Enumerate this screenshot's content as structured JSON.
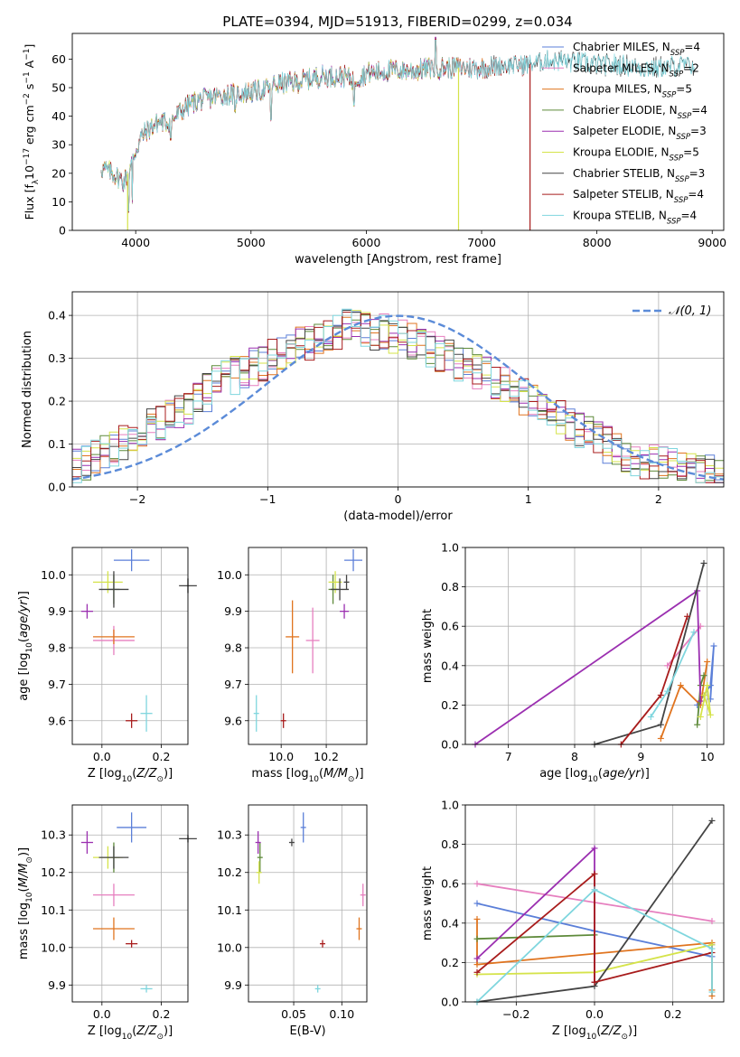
{
  "figure": {
    "title": "PLATE=0394, MJD=51913, FIBERID=0299, z=0.034"
  },
  "colors": {
    "Chabrier MILES": "#5b7fd8",
    "Salpeter MILES": "#e67fbf",
    "Kroupa MILES": "#e0741f",
    "Chabrier ELODIE": "#5e8a3a",
    "Salpeter ELODIE": "#9b2fb0",
    "Kroupa ELODIE": "#d5e34a",
    "Chabrier STELIB": "#444444",
    "Salpeter STELIB": "#a81c1c",
    "Kroupa STELIB": "#7fd6de",
    "gaussian": "#5b8bd8"
  },
  "chart_data": [
    {
      "id": "spectrum",
      "type": "line",
      "xlabel": "wavelength [Angstrom, rest frame]",
      "ylabel": "Flux [f_λ10^-17 erg cm^-2 s^-1 A^-1]",
      "xlim": [
        3450,
        9100
      ],
      "ylim": [
        0,
        69
      ],
      "xticks": [
        4000,
        5000,
        6000,
        7000,
        8000,
        9000
      ],
      "yticks": [
        0,
        10,
        20,
        30,
        40,
        50,
        60
      ],
      "grid": false,
      "legend_position": "right",
      "continuum": [
        [
          3700,
          22
        ],
        [
          3800,
          20
        ],
        [
          3900,
          17
        ],
        [
          3950,
          22
        ],
        [
          4000,
          28
        ],
        [
          4050,
          33
        ],
        [
          4100,
          35
        ],
        [
          4200,
          38
        ],
        [
          4300,
          38
        ],
        [
          4400,
          42
        ],
        [
          4500,
          45
        ],
        [
          4700,
          47
        ],
        [
          4900,
          48
        ],
        [
          5100,
          49
        ],
        [
          5200,
          51
        ],
        [
          5400,
          52
        ],
        [
          5600,
          54
        ],
        [
          5800,
          54
        ],
        [
          5900,
          53
        ],
        [
          6000,
          55
        ],
        [
          6200,
          56
        ],
        [
          6400,
          56
        ],
        [
          6600,
          57
        ],
        [
          6800,
          57
        ],
        [
          7000,
          57
        ],
        [
          7200,
          58
        ],
        [
          7400,
          58
        ],
        [
          7600,
          60
        ],
        [
          7800,
          59
        ],
        [
          8000,
          58
        ],
        [
          8200,
          58
        ],
        [
          8400,
          57
        ],
        [
          8600,
          57
        ],
        [
          8800,
          58
        ]
      ],
      "features": [
        {
          "x": 3935,
          "y": 7
        },
        {
          "x": 3970,
          "y": 10
        },
        {
          "x": 4305,
          "y": 32
        },
        {
          "x": 4862,
          "y": 42
        },
        {
          "x": 5175,
          "y": 39
        },
        {
          "x": 5895,
          "y": 44
        },
        {
          "x": 6563,
          "y": 59
        },
        {
          "x": 6600,
          "y": 67
        }
      ],
      "dropouts": [
        {
          "series": "Kroupa ELODIE",
          "x": 3930
        },
        {
          "series": "Kroupa ELODIE",
          "x": 6800
        },
        {
          "series": "Salpeter STELIB",
          "x": 7420
        }
      ],
      "series": [
        {
          "name": "Chabrier MILES, N_SSP=4",
          "name_main": "Chabrier MILES, N",
          "name_sub": "SSP",
          "name_tail": "=4",
          "color_key": "Chabrier MILES",
          "xmax": 7100
        },
        {
          "name": "Salpeter MILES, N_SSP=2",
          "name_main": "Salpeter MILES, N",
          "name_sub": "SSP",
          "name_tail": "=2",
          "color_key": "Salpeter MILES",
          "xmax": 7100
        },
        {
          "name": "Kroupa MILES, N_SSP=5",
          "name_main": "Kroupa MILES, N",
          "name_sub": "SSP",
          "name_tail": "=5",
          "color_key": "Kroupa MILES",
          "xmax": 7100
        },
        {
          "name": "Chabrier ELODIE, N_SSP=4",
          "name_main": "Chabrier ELODIE, N",
          "name_sub": "SSP",
          "name_tail": "=4",
          "color_key": "Chabrier ELODIE",
          "xmax": 6800
        },
        {
          "name": "Salpeter ELODIE, N_SSP=3",
          "name_main": "Salpeter ELODIE, N",
          "name_sub": "SSP",
          "name_tail": "=3",
          "color_key": "Salpeter ELODIE",
          "xmax": 6800
        },
        {
          "name": "Kroupa ELODIE, N_SSP=5",
          "name_main": "Kroupa ELODIE, N",
          "name_sub": "SSP",
          "name_tail": "=5",
          "color_key": "Kroupa ELODIE",
          "xmax": 6800
        },
        {
          "name": "Chabrier STELIB, N_SSP=3",
          "name_main": "Chabrier STELIB, N",
          "name_sub": "SSP",
          "name_tail": "=3",
          "color_key": "Chabrier STELIB",
          "xmax": 8850
        },
        {
          "name": "Salpeter STELIB, N_SSP=4",
          "name_main": "Salpeter STELIB, N",
          "name_sub": "SSP",
          "name_tail": "=4",
          "color_key": "Salpeter STELIB",
          "xmax": 7420
        },
        {
          "name": "Kroupa STELIB, N_SSP=4",
          "name_main": "Kroupa STELIB, N",
          "name_sub": "SSP",
          "name_tail": "=4",
          "color_key": "Kroupa STELIB",
          "xmax": 8850
        }
      ]
    },
    {
      "id": "residuals",
      "type": "histogram",
      "xlabel": "(data-model)/error",
      "ylabel": "Normed distribution",
      "xlim": [
        -2.5,
        2.5
      ],
      "ylim": [
        0,
        0.455
      ],
      "xticks": [
        -2,
        -1,
        0,
        1,
        2
      ],
      "yticks": [
        0.0,
        0.1,
        0.2,
        0.3,
        0.4
      ],
      "grid": true,
      "legend": "𝒩(0, 1)",
      "legend_position": "top-right",
      "bin_width": 0.1,
      "bin_start": -2.5,
      "envelope": [
        0.045,
        0.055,
        0.065,
        0.075,
        0.085,
        0.1,
        0.12,
        0.13,
        0.14,
        0.15,
        0.17,
        0.18,
        0.19,
        0.21,
        0.22,
        0.24,
        0.25,
        0.26,
        0.27,
        0.28,
        0.29,
        0.3,
        0.31,
        0.32,
        0.33,
        0.34,
        0.35,
        0.35,
        0.36,
        0.37,
        0.37,
        0.37,
        0.36,
        0.36,
        0.35,
        0.35,
        0.34,
        0.33,
        0.32,
        0.31,
        0.3,
        0.29,
        0.28,
        0.27,
        0.26,
        0.25,
        0.24,
        0.22,
        0.21,
        0.2,
        0.18,
        0.17,
        0.16,
        0.15,
        0.13,
        0.12,
        0.11,
        0.1,
        0.09,
        0.08,
        0.07,
        0.06,
        0.055,
        0.05,
        0.045,
        0.04,
        0.035,
        0.035,
        0.03,
        0.03
      ],
      "noise_amp": 0.045
    },
    {
      "id": "age_vs_Z",
      "type": "errorbar",
      "xlabel": "Z [log10(Z/Z⊙)]",
      "ylabel": "age  [log10(age/yr)]",
      "xlim": [
        -0.1,
        0.29
      ],
      "ylim": [
        9.535,
        10.075
      ],
      "xticks": [
        0.0,
        0.2
      ],
      "yticks": [
        9.6,
        9.7,
        9.8,
        9.9,
        10.0
      ],
      "grid": true,
      "points": [
        {
          "series": "Chabrier MILES",
          "x": 0.1,
          "y": 10.04,
          "xerr": 0.06,
          "yerr": 0.03
        },
        {
          "series": "Salpeter MILES",
          "x": 0.04,
          "y": 9.82,
          "xerr": 0.07,
          "yerr": 0.04
        },
        {
          "series": "Kroupa MILES",
          "x": 0.04,
          "y": 9.83,
          "xerr": 0.07,
          "yerr": 0.02
        },
        {
          "series": "Chabrier ELODIE",
          "x": 0.04,
          "y": 9.96,
          "xerr": 0.02,
          "yerr": 0.04
        },
        {
          "series": "Salpeter ELODIE",
          "x": -0.05,
          "y": 9.9,
          "xerr": 0.02,
          "yerr": 0.02
        },
        {
          "series": "Kroupa ELODIE",
          "x": 0.02,
          "y": 9.98,
          "xerr": 0.05,
          "yerr": 0.03
        },
        {
          "series": "Chabrier STELIB",
          "x": 0.04,
          "y": 9.96,
          "xerr": 0.05,
          "yerr": 0.05
        },
        {
          "series": "Salpeter STELIB",
          "x": 0.1,
          "y": 9.6,
          "xerr": 0.02,
          "yerr": 0.02
        },
        {
          "series": "Kroupa STELIB",
          "x": 0.15,
          "y": 9.62,
          "xerr": 0.02,
          "yerr": 0.05
        },
        {
          "series": "Chabrier STELIB",
          "x": 0.29,
          "y": 9.97,
          "xerr": 0.03,
          "yerr": 0.02
        }
      ]
    },
    {
      "id": "age_vs_mass",
      "type": "errorbar",
      "xlabel": "mass [log10(M/M⊙)]",
      "ylabel": "",
      "xlim": [
        9.855,
        10.38
      ],
      "ylim": [
        9.535,
        10.075
      ],
      "xticks": [
        10.0,
        10.2
      ],
      "yticks": [
        9.6,
        9.7,
        9.8,
        9.9,
        10.0
      ],
      "grid": true,
      "points": [
        {
          "series": "Chabrier MILES",
          "x": 10.32,
          "y": 10.04,
          "xerr": 0.04,
          "yerr": 0.03
        },
        {
          "series": "Salpeter MILES",
          "x": 10.14,
          "y": 9.82,
          "xerr": 0.03,
          "yerr": 0.09
        },
        {
          "series": "Kroupa MILES",
          "x": 10.05,
          "y": 9.83,
          "xerr": 0.03,
          "yerr": 0.1
        },
        {
          "series": "Chabrier ELODIE",
          "x": 10.23,
          "y": 9.96,
          "xerr": 0.02,
          "yerr": 0.04
        },
        {
          "series": "Salpeter ELODIE",
          "x": 10.28,
          "y": 9.9,
          "xerr": 0.02,
          "yerr": 0.02
        },
        {
          "series": "Kroupa ELODIE",
          "x": 10.24,
          "y": 9.98,
          "xerr": 0.03,
          "yerr": 0.03
        },
        {
          "series": "Chabrier STELIB",
          "x": 10.26,
          "y": 9.96,
          "xerr": 0.04,
          "yerr": 0.03
        },
        {
          "series": "Salpeter STELIB",
          "x": 10.01,
          "y": 9.6,
          "xerr": 0.01,
          "yerr": 0.02
        },
        {
          "series": "Kroupa STELIB",
          "x": 9.89,
          "y": 9.62,
          "xerr": 0.01,
          "yerr": 0.05
        },
        {
          "series": "Chabrier STELIB",
          "x": 10.29,
          "y": 9.98,
          "xerr": 0.01,
          "yerr": 0.02
        }
      ]
    },
    {
      "id": "massweight_vs_age",
      "type": "line",
      "xlabel": "age  [log10(age/yr)]",
      "ylabel": "mass weight",
      "xlim": [
        6.35,
        10.25
      ],
      "ylim": [
        0,
        1.0
      ],
      "xticks": [
        7,
        8,
        9,
        10
      ],
      "yticks": [
        0.0,
        0.2,
        0.4,
        0.6,
        0.8,
        1.0
      ],
      "grid": true,
      "series": [
        {
          "name": "Chabrier MILES",
          "x": [
            9.85,
            10.05,
            10.1,
            10.05
          ],
          "y": [
            0.2,
            0.3,
            0.5,
            0.23
          ]
        },
        {
          "name": "Salpeter MILES",
          "x": [
            9.4,
            9.9
          ],
          "y": [
            0.4,
            0.6
          ]
        },
        {
          "name": "Kroupa MILES",
          "x": [
            9.3,
            9.6,
            9.9,
            10.0
          ],
          "y": [
            0.03,
            0.3,
            0.2,
            0.42
          ]
        },
        {
          "name": "Chabrier ELODIE",
          "x": [
            9.85,
            9.9,
            9.95
          ],
          "y": [
            0.1,
            0.3,
            0.35
          ]
        },
        {
          "name": "Salpeter ELODIE",
          "x": [
            6.5,
            9.85,
            9.9
          ],
          "y": [
            0.0,
            0.78,
            0.22
          ]
        },
        {
          "name": "Kroupa ELODIE",
          "x": [
            9.9,
            10.0,
            10.05,
            9.95
          ],
          "y": [
            0.14,
            0.3,
            0.15,
            0.25
          ]
        },
        {
          "name": "Chabrier STELIB",
          "x": [
            8.3,
            9.3,
            9.95
          ],
          "y": [
            0.0,
            0.1,
            0.92
          ]
        },
        {
          "name": "Salpeter STELIB",
          "x": [
            8.7,
            9.3,
            9.7
          ],
          "y": [
            0.0,
            0.25,
            0.65
          ]
        },
        {
          "name": "Kroupa STELIB",
          "x": [
            9.15,
            9.4,
            9.8
          ],
          "y": [
            0.14,
            0.27,
            0.57
          ]
        }
      ]
    },
    {
      "id": "mass_vs_Z",
      "type": "errorbar",
      "xlabel": "Z [log10(Z/Z⊙)]",
      "ylabel": "mass [log10(M/M⊙)]",
      "xlim": [
        -0.1,
        0.29
      ],
      "ylim": [
        9.855,
        10.38
      ],
      "xticks": [
        0.0,
        0.2
      ],
      "yticks": [
        9.9,
        10.0,
        10.1,
        10.2,
        10.3
      ],
      "grid": true,
      "points": [
        {
          "series": "Chabrier MILES",
          "x": 0.1,
          "y": 10.32,
          "xerr": 0.05,
          "yerr": 0.04
        },
        {
          "series": "Salpeter MILES",
          "x": 0.04,
          "y": 10.14,
          "xerr": 0.07,
          "yerr": 0.03
        },
        {
          "series": "Kroupa MILES",
          "x": 0.04,
          "y": 10.05,
          "xerr": 0.07,
          "yerr": 0.03
        },
        {
          "series": "Chabrier ELODIE",
          "x": 0.04,
          "y": 10.24,
          "xerr": 0.02,
          "yerr": 0.04
        },
        {
          "series": "Salpeter ELODIE",
          "x": -0.05,
          "y": 10.28,
          "xerr": 0.02,
          "yerr": 0.03
        },
        {
          "series": "Kroupa ELODIE",
          "x": 0.02,
          "y": 10.24,
          "xerr": 0.05,
          "yerr": 0.03
        },
        {
          "series": "Chabrier STELIB",
          "x": 0.04,
          "y": 10.24,
          "xerr": 0.05,
          "yerr": 0.03
        },
        {
          "series": "Salpeter STELIB",
          "x": 0.1,
          "y": 10.01,
          "xerr": 0.02,
          "yerr": 0.01
        },
        {
          "series": "Kroupa STELIB",
          "x": 0.15,
          "y": 9.89,
          "xerr": 0.02,
          "yerr": 0.01
        },
        {
          "series": "Chabrier STELIB",
          "x": 0.29,
          "y": 10.29,
          "xerr": 0.03,
          "yerr": 0.01
        }
      ]
    },
    {
      "id": "mass_vs_ebv",
      "type": "errorbar",
      "xlabel": "E(B-V)",
      "ylabel": "",
      "xlim": [
        0.003,
        0.126
      ],
      "ylim": [
        9.855,
        10.38
      ],
      "xticks": [
        0.05,
        0.1
      ],
      "yticks": [
        9.9,
        10.0,
        10.1,
        10.2,
        10.3
      ],
      "grid": true,
      "points": [
        {
          "series": "Chabrier MILES",
          "x": 0.06,
          "y": 10.32,
          "xerr": 0.0,
          "yerr": 0.04
        },
        {
          "series": "Salpeter MILES",
          "x": 0.122,
          "y": 10.14,
          "xerr": 0.0,
          "yerr": 0.03
        },
        {
          "series": "Kroupa MILES",
          "x": 0.118,
          "y": 10.05,
          "xerr": 0.0,
          "yerr": 0.03
        },
        {
          "series": "Chabrier ELODIE",
          "x": 0.015,
          "y": 10.24,
          "xerr": 0.0,
          "yerr": 0.04
        },
        {
          "series": "Salpeter ELODIE",
          "x": 0.013,
          "y": 10.28,
          "xerr": 0.0,
          "yerr": 0.03
        },
        {
          "series": "Kroupa ELODIE",
          "x": 0.014,
          "y": 10.2,
          "xerr": 0.0,
          "yerr": 0.03
        },
        {
          "series": "Chabrier STELIB",
          "x": 0.048,
          "y": 10.28,
          "xerr": 0.0,
          "yerr": 0.01
        },
        {
          "series": "Salpeter STELIB",
          "x": 0.08,
          "y": 10.01,
          "xerr": 0.0,
          "yerr": 0.01
        },
        {
          "series": "Kroupa STELIB",
          "x": 0.075,
          "y": 9.89,
          "xerr": 0.0,
          "yerr": 0.01
        }
      ]
    },
    {
      "id": "massweight_vs_Z",
      "type": "line",
      "xlabel": "Z [log10(Z/Z⊙)]",
      "ylabel": "mass weight",
      "xlim": [
        -0.33,
        0.33
      ],
      "ylim": [
        0,
        1.0
      ],
      "xticks": [
        -0.2,
        0.0,
        0.2
      ],
      "yticks": [
        0.0,
        0.2,
        0.4,
        0.6,
        0.8,
        1.0
      ],
      "grid": true,
      "series": [
        {
          "name": "Chabrier MILES",
          "x": [
            -0.3,
            0.0,
            0.3,
            0.3
          ],
          "y": [
            0.5,
            0.36,
            0.23,
            0.29
          ]
        },
        {
          "name": "Salpeter MILES",
          "x": [
            -0.3,
            0.3
          ],
          "y": [
            0.6,
            0.41
          ]
        },
        {
          "name": "Kroupa MILES",
          "x": [
            -0.3,
            -0.3,
            0.3,
            0.3,
            0.3
          ],
          "y": [
            0.42,
            0.19,
            0.3,
            0.06,
            0.03
          ]
        },
        {
          "name": "Chabrier ELODIE",
          "x": [
            -0.3,
            0.0,
            0.0
          ],
          "y": [
            0.32,
            0.34,
            0.1
          ]
        },
        {
          "name": "Salpeter ELODIE",
          "x": [
            -0.3,
            0.0,
            0.0
          ],
          "y": [
            0.22,
            0.78,
            0.1
          ]
        },
        {
          "name": "Kroupa ELODIE",
          "x": [
            -0.3,
            0.0,
            0.3
          ],
          "y": [
            0.14,
            0.15,
            0.29
          ]
        },
        {
          "name": "Chabrier STELIB",
          "x": [
            -0.3,
            0.0,
            0.3
          ],
          "y": [
            0.0,
            0.08,
            0.92
          ]
        },
        {
          "name": "Salpeter STELIB",
          "x": [
            -0.3,
            0.0,
            0.0,
            0.3
          ],
          "y": [
            0.15,
            0.65,
            0.1,
            0.25
          ]
        },
        {
          "name": "Kroupa STELIB",
          "x": [
            -0.3,
            0.0,
            0.3,
            0.3
          ],
          "y": [
            0.0,
            0.57,
            0.27,
            0.05
          ]
        }
      ]
    }
  ]
}
